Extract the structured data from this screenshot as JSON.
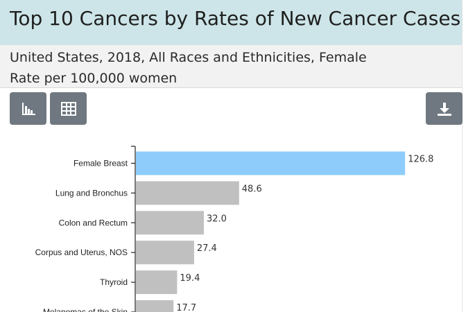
{
  "header": {
    "title": "Top 10 Cancers by Rates of New Cancer Cases",
    "subtitle_line1": "United States, 2018, All Races and Ethnicities, Female",
    "subtitle_line2": "Rate per 100,000 women"
  },
  "toolbar": {
    "chart_view_icon": "bar-chart-icon",
    "table_view_icon": "table-grid-icon",
    "download_icon": "download-icon"
  },
  "colors": {
    "highlight_bar": "#8ecdfb",
    "default_bar": "#c0c0c0",
    "title_background": "#cde5e8",
    "button_background": "#6f7880"
  },
  "chart_data": {
    "type": "bar",
    "orientation": "horizontal",
    "categories": [
      "Female Breast",
      "Lung and Bronchus",
      "Colon and Rectum",
      "Corpus and Uterus, NOS",
      "Thyroid",
      "Melanomas of the Skin"
    ],
    "values": [
      126.8,
      48.6,
      32.0,
      27.4,
      19.4,
      17.7
    ],
    "value_labels": [
      "126.8",
      "48.6",
      "32.0",
      "27.4",
      "19.4",
      "17.7"
    ],
    "highlighted_index": 0,
    "xlim": [
      0,
      130
    ],
    "grid": false
  }
}
